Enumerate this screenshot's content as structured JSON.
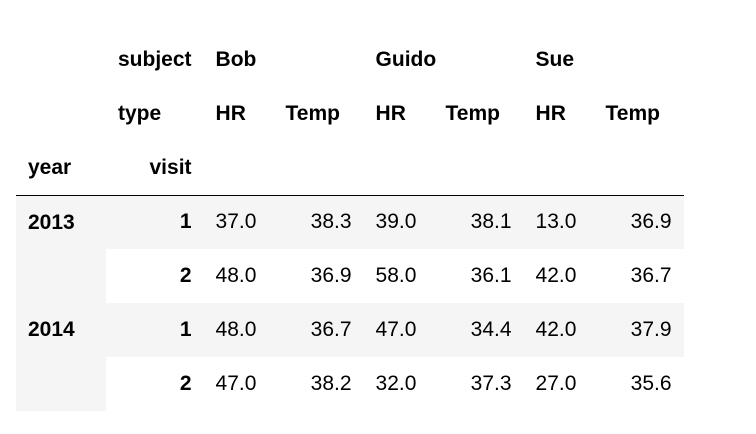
{
  "columns": {
    "level0_name": "subject",
    "level1_name": "type",
    "subjects": [
      "Bob",
      "Guido",
      "Sue"
    ],
    "types": [
      "HR",
      "Temp",
      "HR",
      "Temp",
      "HR",
      "Temp"
    ]
  },
  "index": {
    "names": [
      "year",
      "visit"
    ],
    "years": [
      "2013",
      "2014"
    ]
  },
  "rows": [
    {
      "visit": "1",
      "values": [
        "37.0",
        "38.3",
        "39.0",
        "38.1",
        "13.0",
        "36.9"
      ]
    },
    {
      "visit": "2",
      "values": [
        "48.0",
        "36.9",
        "58.0",
        "36.1",
        "42.0",
        "36.7"
      ]
    },
    {
      "visit": "1",
      "values": [
        "48.0",
        "36.7",
        "47.0",
        "34.4",
        "42.0",
        "37.9"
      ]
    },
    {
      "visit": "2",
      "values": [
        "47.0",
        "38.2",
        "32.0",
        "37.3",
        "27.0",
        "35.6"
      ]
    }
  ]
}
